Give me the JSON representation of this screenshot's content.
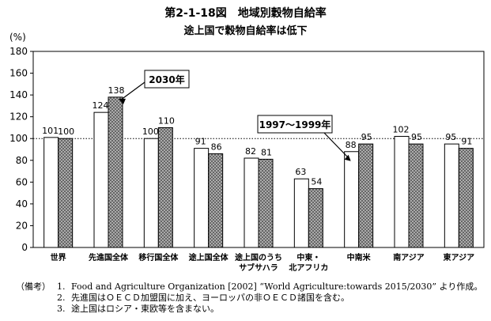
{
  "header": {
    "title": "第2-1-18図　地域別穀物自給率",
    "subtitle": "途上国で穀物自給率は低下",
    "unit": "(%)"
  },
  "colors": {
    "bar_1997": "#ffffff",
    "bar_2030": "#9e9e9e",
    "stroke": "#000000",
    "reference_line": "#000000"
  },
  "chart_data": {
    "type": "bar",
    "categories": [
      "世界",
      "先進国全体",
      "移行国全体",
      "途上国全体",
      "途上国のうち\nサブサハラ",
      "中東・\n北アフリカ",
      "中南米",
      "南アジア",
      "東アジア"
    ],
    "series": [
      {
        "name": "1997～1999年",
        "values": [
          101,
          124,
          100,
          91,
          82,
          63,
          88,
          102,
          95
        ]
      },
      {
        "name": "2030年",
        "values": [
          100,
          138,
          110,
          86,
          81,
          54,
          95,
          95,
          91
        ]
      }
    ],
    "ylim": [
      0,
      180
    ],
    "yticks": [
      0,
      20,
      40,
      60,
      80,
      100,
      120,
      140,
      160,
      180
    ],
    "reference_line": 100,
    "grid": false,
    "xlabel": "",
    "ylabel": "(%)"
  },
  "notes": {
    "label": "（備考）",
    "items": [
      {
        "num": "1.",
        "text": "Food and Agriculture Organization [2002] “World Agriculture:towards 2015/2030” より作成。"
      },
      {
        "num": "2.",
        "text": "先進国はＯＥＣＤ加盟国に加え、ヨーロッパの非ＯＥＣＤ諸国を含む。"
      },
      {
        "num": "3.",
        "text": "途上国はロシア・東欧等を含まない。"
      }
    ]
  }
}
